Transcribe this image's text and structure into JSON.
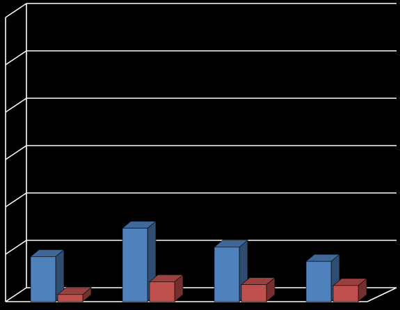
{
  "chart_data": {
    "type": "bar",
    "style": "3d-clustered-column",
    "categories": [
      "",
      "",
      "",
      ""
    ],
    "series": [
      {
        "values": [
          0.95,
          1.55,
          1.15,
          0.85
        ],
        "color": "#4F81BD"
      },
      {
        "values": [
          0.15,
          0.42,
          0.36,
          0.34
        ],
        "color": "#C0504D"
      }
    ],
    "ylim": [
      0,
      6
    ],
    "grid": true,
    "legend": "none",
    "background": "#000000",
    "gridline_color": "#FFFFFF"
  }
}
